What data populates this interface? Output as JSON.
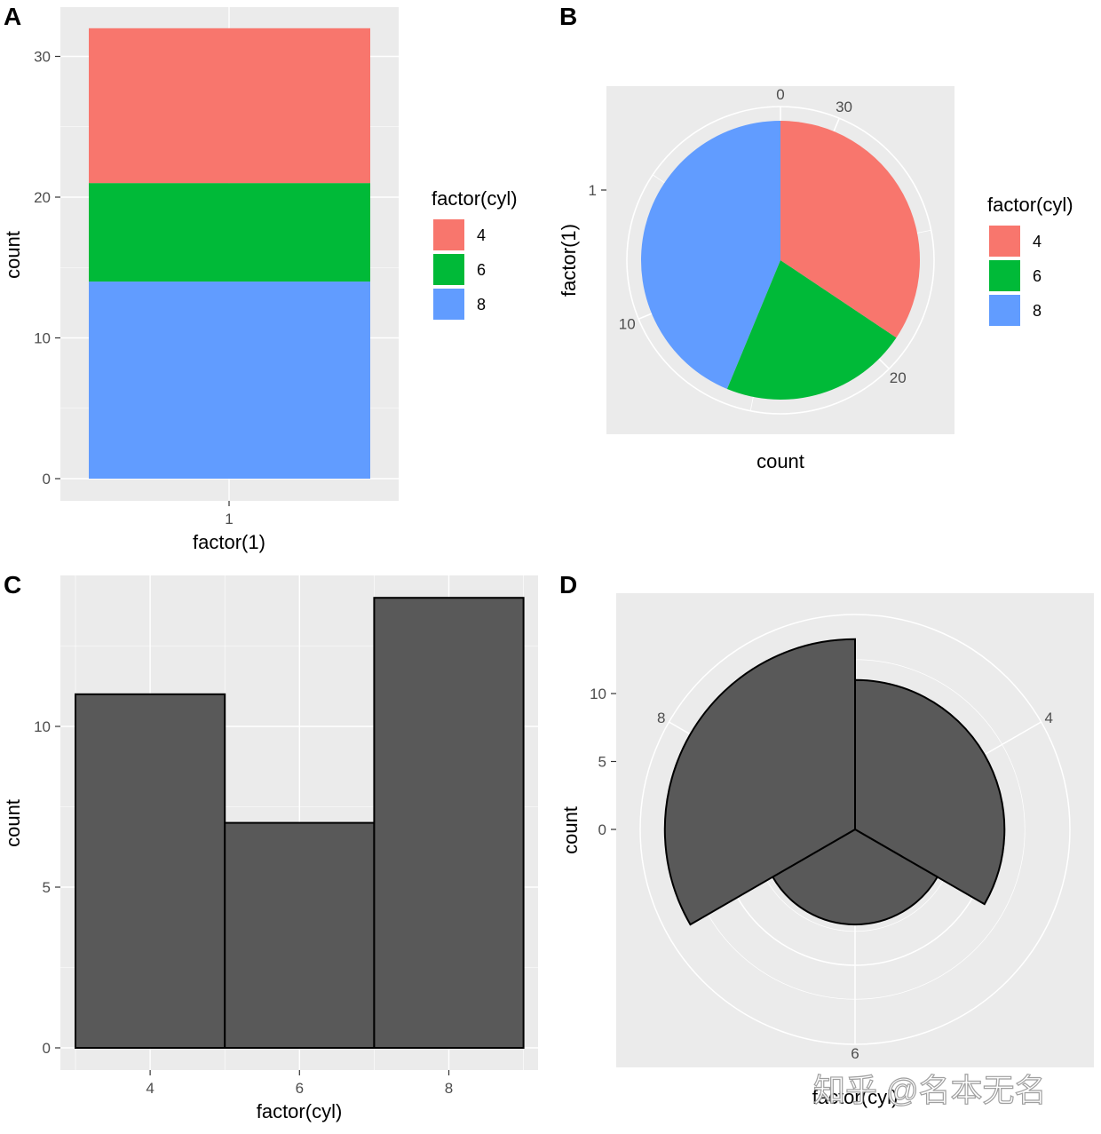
{
  "colors": {
    "cyl4": "#F8766D",
    "cyl6": "#00BA38",
    "cyl8": "#619CFF",
    "bar": "#595959",
    "panel_bg": "#EBEBEB",
    "grid": "#FFFFFF"
  },
  "watermark": "知乎 @名本无名",
  "chart_data": [
    {
      "panel": "A",
      "type": "bar",
      "stacked": true,
      "categories": [
        "1"
      ],
      "series": [
        {
          "name": "4",
          "values": [
            11
          ]
        },
        {
          "name": "6",
          "values": [
            7
          ]
        },
        {
          "name": "8",
          "values": [
            14
          ]
        }
      ],
      "xlabel": "factor(1)",
      "ylabel": "count",
      "yticks": [
        "0",
        "10",
        "20",
        "30"
      ],
      "ylim": [
        0,
        32
      ],
      "legend": {
        "title": "factor(cyl)",
        "labels": [
          "4",
          "6",
          "8"
        ],
        "placement": "right"
      },
      "grid": true
    },
    {
      "panel": "B",
      "type": "pie",
      "coord": "polar (theta = y)",
      "categories": [
        "4",
        "6",
        "8"
      ],
      "values": [
        11,
        7,
        14
      ],
      "xlabel": "count",
      "ylabel": "factor(1)",
      "yticks": [
        "1"
      ],
      "angular_ticks": [
        "0",
        "10",
        "20",
        "30"
      ],
      "legend": {
        "title": "factor(cyl)",
        "labels": [
          "4",
          "6",
          "8"
        ],
        "placement": "right"
      },
      "grid": true
    },
    {
      "panel": "C",
      "type": "bar",
      "categories": [
        "4",
        "6",
        "8"
      ],
      "values": [
        11,
        7,
        14
      ],
      "xlabel": "factor(cyl)",
      "ylabel": "count",
      "xticks": [
        "4",
        "6",
        "8"
      ],
      "yticks": [
        "0",
        "5",
        "10"
      ],
      "ylim": [
        0,
        14
      ],
      "grid": true
    },
    {
      "panel": "D",
      "type": "bar",
      "coord": "polar (theta = x)",
      "categories": [
        "4",
        "6",
        "8"
      ],
      "values": [
        11,
        7,
        14
      ],
      "xlabel": "factor(cyl)",
      "ylabel": "count",
      "angular_ticks": [
        "4",
        "6",
        "8"
      ],
      "radial_ticks": [
        "0",
        "5",
        "10"
      ],
      "ylim": [
        0,
        14
      ],
      "grid": true
    }
  ]
}
